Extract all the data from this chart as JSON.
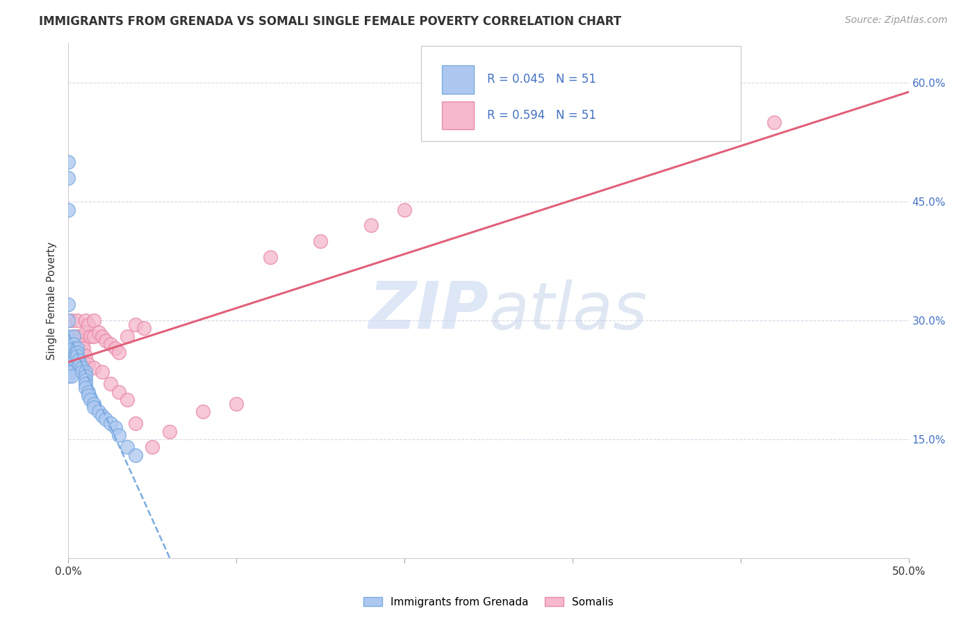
{
  "title": "IMMIGRANTS FROM GRENADA VS SOMALI SINGLE FEMALE POVERTY CORRELATION CHART",
  "source": "Source: ZipAtlas.com",
  "ylabel": "Single Female Poverty",
  "x_min": 0.0,
  "x_max": 0.5,
  "y_min": 0.0,
  "y_max": 0.65,
  "x_tick_positions": [
    0.0,
    0.1,
    0.2,
    0.3,
    0.4,
    0.5
  ],
  "x_tick_labels_edge": [
    "0.0%",
    "",
    "",
    "",
    "",
    "50.0%"
  ],
  "y_ticks": [
    0.15,
    0.3,
    0.45,
    0.6
  ],
  "y_tick_labels": [
    "15.0%",
    "30.0%",
    "45.0%",
    "60.0%"
  ],
  "grenada_color": "#adc8f0",
  "grenada_edge": "#7aaae0",
  "somali_color": "#f5b8cc",
  "somali_edge": "#e88aaa",
  "trend_grenada_color": "#7aaae0",
  "trend_somali_color": "#e0607a",
  "R_grenada": 0.045,
  "R_somali": 0.594,
  "N": 51,
  "legend_label_grenada": "Immigrants from Grenada",
  "legend_label_somali": "Somalis",
  "watermark_zip": "ZIP",
  "watermark_atlas": "atlas",
  "background_color": "#ffffff",
  "grid_color": "#d8d8e8",
  "axis_label_color": "#4472c4",
  "text_color": "#333333",
  "grenada_x": [
    0.0,
    0.0,
    0.0,
    0.0,
    0.0,
    0.0,
    0.0,
    0.0,
    0.0,
    0.0,
    0.0,
    0.0,
    0.0,
    0.0,
    0.0,
    0.0,
    0.0,
    0.002,
    0.002,
    0.003,
    0.003,
    0.003,
    0.004,
    0.004,
    0.004,
    0.005,
    0.005,
    0.005,
    0.006,
    0.006,
    0.007,
    0.008,
    0.008,
    0.01,
    0.01,
    0.01,
    0.01,
    0.01,
    0.012,
    0.012,
    0.013,
    0.015,
    0.015,
    0.018,
    0.02,
    0.022,
    0.025,
    0.028,
    0.03,
    0.035,
    0.04
  ],
  "grenada_y": [
    0.5,
    0.48,
    0.44,
    0.32,
    0.3,
    0.28,
    0.27,
    0.265,
    0.26,
    0.255,
    0.25,
    0.245,
    0.245,
    0.24,
    0.24,
    0.235,
    0.23,
    0.235,
    0.23,
    0.28,
    0.27,
    0.265,
    0.26,
    0.255,
    0.25,
    0.265,
    0.26,
    0.255,
    0.25,
    0.245,
    0.245,
    0.24,
    0.235,
    0.235,
    0.23,
    0.225,
    0.22,
    0.215,
    0.21,
    0.205,
    0.2,
    0.195,
    0.19,
    0.185,
    0.18,
    0.175,
    0.17,
    0.165,
    0.155,
    0.14,
    0.13
  ],
  "somali_x": [
    0.0,
    0.0,
    0.0,
    0.0,
    0.002,
    0.003,
    0.003,
    0.004,
    0.004,
    0.005,
    0.005,
    0.006,
    0.007,
    0.008,
    0.009,
    0.01,
    0.01,
    0.012,
    0.013,
    0.015,
    0.015,
    0.018,
    0.02,
    0.022,
    0.025,
    0.028,
    0.03,
    0.035,
    0.04,
    0.045,
    0.005,
    0.005,
    0.008,
    0.01,
    0.01,
    0.012,
    0.015,
    0.02,
    0.025,
    0.03,
    0.035,
    0.04,
    0.05,
    0.06,
    0.08,
    0.1,
    0.12,
    0.15,
    0.18,
    0.2,
    0.42
  ],
  "somali_y": [
    0.27,
    0.265,
    0.26,
    0.255,
    0.3,
    0.28,
    0.265,
    0.275,
    0.26,
    0.3,
    0.28,
    0.28,
    0.275,
    0.27,
    0.265,
    0.3,
    0.285,
    0.295,
    0.28,
    0.3,
    0.28,
    0.285,
    0.28,
    0.275,
    0.27,
    0.265,
    0.26,
    0.28,
    0.295,
    0.29,
    0.255,
    0.24,
    0.245,
    0.255,
    0.24,
    0.245,
    0.24,
    0.235,
    0.22,
    0.21,
    0.2,
    0.17,
    0.14,
    0.16,
    0.185,
    0.195,
    0.38,
    0.4,
    0.42,
    0.44,
    0.55
  ]
}
